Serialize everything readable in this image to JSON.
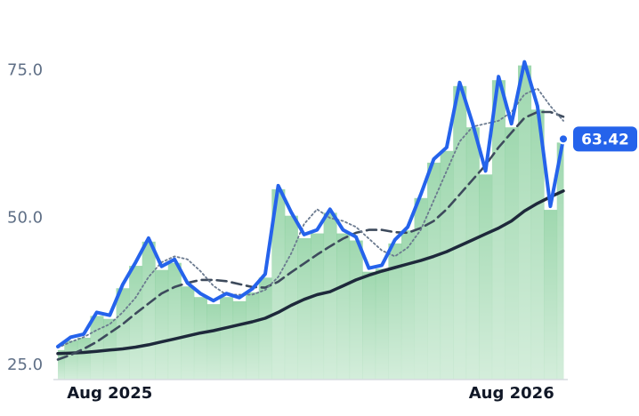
{
  "chart_data": {
    "type": "line",
    "categories": [
      null,
      null,
      null,
      null,
      "Aug 2025",
      null,
      null,
      null,
      null,
      null,
      null,
      null,
      null,
      null,
      null,
      null,
      null,
      null,
      null,
      null,
      null,
      null,
      null,
      null,
      null,
      null,
      null,
      null,
      null,
      null,
      null,
      null,
      null,
      null,
      null,
      "Aug 2026",
      null,
      null,
      null,
      null
    ],
    "series": [
      {
        "color": "#2563eb",
        "style": "solid",
        "width": 4,
        "values": [
          28.2,
          29.8,
          30.3,
          34,
          33.5,
          38.7,
          42.5,
          46.6,
          41.8,
          43,
          39,
          37.2,
          36,
          37.2,
          36.5,
          38,
          40.5,
          55.5,
          51,
          47.2,
          48,
          51.5,
          48,
          46.8,
          41.5,
          42,
          46.3,
          48.5,
          54,
          60,
          62,
          73,
          66,
          58,
          74,
          66,
          76.5,
          69,
          52,
          63.42
        ]
      },
      {
        "color": "#6b7a8f",
        "style": "dotted",
        "width": 1.8,
        "values": [
          28,
          29,
          29.8,
          31,
          32,
          34,
          36.5,
          40,
          42.5,
          43.5,
          43,
          41,
          38.5,
          37,
          37,
          37,
          37.8,
          40,
          44,
          49,
          51.5,
          50,
          49.5,
          48.5,
          46.5,
          44.5,
          43.5,
          45,
          48,
          53,
          58,
          63,
          65.5,
          66,
          66.5,
          68,
          71,
          72,
          69,
          66.5
        ]
      },
      {
        "color": "#3d4a5c",
        "style": "dashed",
        "width": 2.6,
        "values": [
          26,
          26.8,
          27.8,
          29,
          30.5,
          32,
          33.8,
          35.5,
          37.2,
          38.3,
          39,
          39.5,
          39.5,
          39.3,
          38.8,
          38.3,
          38.2,
          39.2,
          40.8,
          42.3,
          43.8,
          45.2,
          46.5,
          47.5,
          48,
          48,
          47.6,
          47.5,
          48.3,
          49.5,
          51.5,
          54,
          56.5,
          59,
          62,
          64.5,
          67,
          68,
          68,
          67.2
        ]
      },
      {
        "color": "#1e293b",
        "style": "solid",
        "width": 3.5,
        "values": [
          27,
          27.1,
          27.2,
          27.4,
          27.6,
          27.8,
          28.1,
          28.5,
          29,
          29.5,
          30,
          30.5,
          30.9,
          31.4,
          31.9,
          32.4,
          33,
          34,
          35.2,
          36.2,
          37,
          37.5,
          38.5,
          39.5,
          40.3,
          41,
          41.6,
          42.2,
          42.8,
          43.5,
          44.3,
          45.3,
          46.3,
          47.3,
          48.3,
          49.5,
          51.2,
          52.5,
          53.6,
          54.6
        ]
      }
    ],
    "area_color": "#7fcb94",
    "ylim": [
      22.6,
      87
    ],
    "yticks": [
      {
        "value": 25,
        "label": "25.0"
      },
      {
        "value": 50,
        "label": "50.0"
      },
      {
        "value": 75,
        "label": "75.0"
      }
    ]
  }
}
